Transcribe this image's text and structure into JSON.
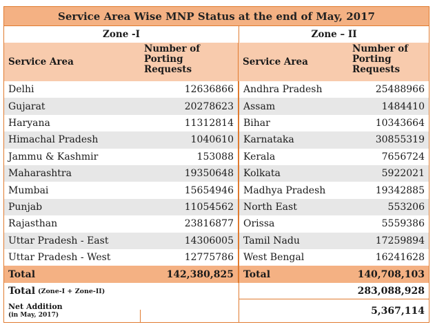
{
  "title": "Service Area Wise MNP Status at the end of May, 2017",
  "zones": [
    "Zone -I",
    "Zone – II"
  ],
  "headers": {
    "service_area": "Service Area",
    "requests_line1": "Number of",
    "requests_line2": "Porting",
    "requests_line3": "Requests"
  },
  "rows": [
    {
      "z1_area": "Delhi",
      "z1_val": "12636866",
      "z2_area": "Andhra Pradesh",
      "z2_val": "25488966"
    },
    {
      "z1_area": "Gujarat",
      "z1_val": "20278623",
      "z2_area": "Assam",
      "z2_val": "1484410"
    },
    {
      "z1_area": "Haryana",
      "z1_val": "11312814",
      "z2_area": "Bihar",
      "z2_val": "10343664"
    },
    {
      "z1_area": "Himachal Pradesh",
      "z1_val": "1040610",
      "z2_area": "Karnataka",
      "z2_val": "30855319"
    },
    {
      "z1_area": "Jammu & Kashmir",
      "z1_val": "153088",
      "z2_area": "Kerala",
      "z2_val": "7656724"
    },
    {
      "z1_area": "Maharashtra",
      "z1_val": "19350648",
      "z2_area": "Kolkata",
      "z2_val": "5922021"
    },
    {
      "z1_area": "Mumbai",
      "z1_val": "15654946",
      "z2_area": "Madhya Pradesh",
      "z2_val": "19342885"
    },
    {
      "z1_area": "Punjab",
      "z1_val": "11054562",
      "z2_area": "North East",
      "z2_val": "553206"
    },
    {
      "z1_area": "Rajasthan",
      "z1_val": "23816877",
      "z2_area": "Orissa",
      "z2_val": "5559386"
    },
    {
      "z1_area": "Uttar Pradesh - East",
      "z1_val": "14306005",
      "z2_area": "Tamil Nadu",
      "z2_val": "17259894"
    },
    {
      "z1_area": "Uttar Pradesh - West",
      "z1_val": "12775786",
      "z2_area": "West Bengal",
      "z2_val": "16241628"
    }
  ],
  "totals": {
    "label": "Total",
    "z1": "142,380,825",
    "z2": "140,708,103"
  },
  "grand_total": {
    "label": "Total",
    "sub": "(Zone-I + Zone-II)",
    "value": "283,088,928"
  },
  "net_addition": {
    "label": "Net Addition",
    "sub": "(in May, 2017)",
    "value": "5,367,114"
  }
}
